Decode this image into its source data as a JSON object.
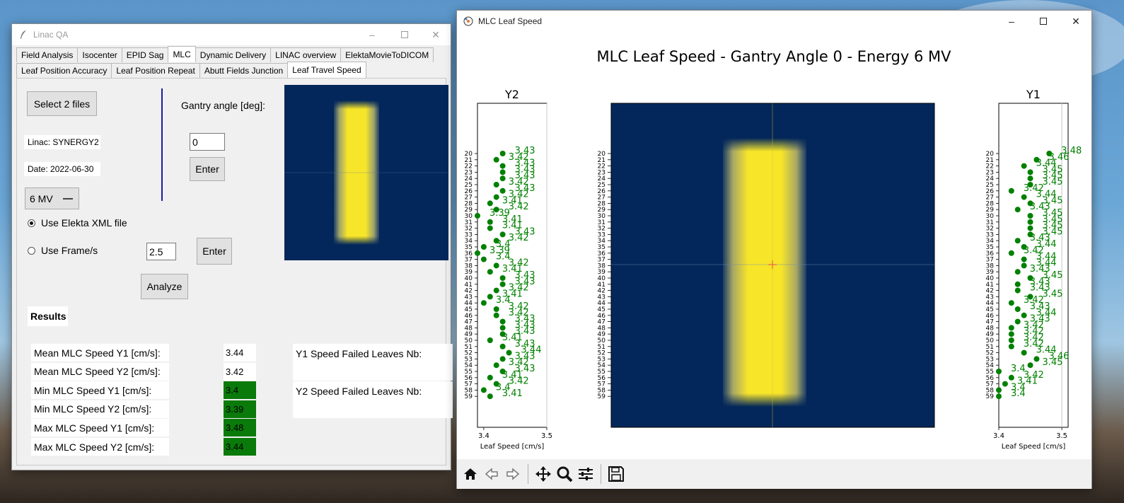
{
  "qa_window": {
    "title": "Linac QA",
    "tabs": [
      "Field Analysis",
      "Isocenter",
      "EPID Sag",
      "MLC",
      "Dynamic Delivery",
      "LINAC overview",
      "ElektaMovieToDICOM"
    ],
    "active_tab": "MLC",
    "subtabs": [
      "Leaf Position Accuracy",
      "Leaf Position Repeat",
      "Abutt Fields Junction",
      "Leaf Travel Speed"
    ],
    "active_subtab": "Leaf Travel Speed",
    "select_files_label": "Select 2 files",
    "linac_label": "Linac: SYNERGY2",
    "date_label": "Date: 2022-06-30",
    "energy_value": "6 MV",
    "gantry_label": "Gantry angle [deg]:",
    "gantry_value": "0",
    "enter_label": "Enter",
    "radio_xml_label": "Use Elekta XML file",
    "radio_frames_label": "Use Frame/s",
    "frames_value": "2.5",
    "analyze_label": "Analyze",
    "results_label": "Results",
    "results": [
      {
        "label": "Mean MLC Speed Y1 [cm/s]:",
        "value": "3.44",
        "status": "none"
      },
      {
        "label": "Mean MLC Speed Y2 [cm/s]:",
        "value": "3.42",
        "status": "none"
      },
      {
        "label": "Min MLC Speed Y1 [cm/s]:",
        "value": "3.4",
        "status": "pass"
      },
      {
        "label": "Min MLC Speed Y2 [cm/s]:",
        "value": "3.39",
        "status": "pass"
      },
      {
        "label": "Max MLC Speed Y1 [cm/s]:",
        "value": "3.48",
        "status": "pass"
      },
      {
        "label": "Max MLC Speed Y2 [cm/s]:",
        "value": "3.44",
        "status": "pass"
      }
    ],
    "y1_failed_label": "Y1 Speed Failed Leaves Nb:",
    "y2_failed_label": "Y2 Speed Failed Leaves Nb:"
  },
  "mlc_window": {
    "title": "MLC Leaf Speed",
    "toolbar": [
      "home-icon",
      "back-icon",
      "forward-icon",
      "pan-icon",
      "zoom-icon",
      "configure-icon",
      "save-icon"
    ]
  },
  "colors": {
    "pass_green": "#0a7a0a",
    "point_green": "#008000",
    "image_bg": "#032a60",
    "field_yellow": "#f7e52a",
    "crosshair": "#e05050"
  },
  "chart_data": [
    {
      "type": "image",
      "title": "MLC Leaf Speed - Gantry Angle 0 - Energy 6 MV",
      "description_field": {
        "x_range": [
          0,
          100
        ],
        "y_range": [
          0,
          100
        ],
        "field_x": [
          40,
          60
        ]
      }
    },
    {
      "type": "scatter",
      "title": "Y2",
      "xlabel": "Leaf Speed [cm/s]",
      "xticks": [
        "3.4",
        "3.5"
      ],
      "xlim": [
        3.39,
        3.5
      ],
      "leaves": [
        20,
        21,
        22,
        23,
        24,
        25,
        26,
        27,
        28,
        29,
        30,
        31,
        32,
        33,
        34,
        35,
        36,
        37,
        38,
        39,
        40,
        41,
        42,
        43,
        44,
        45,
        46,
        47,
        48,
        49,
        50,
        51,
        52,
        53,
        54,
        55,
        56,
        57,
        58,
        59
      ],
      "values": [
        3.43,
        3.42,
        3.43,
        3.43,
        3.43,
        3.42,
        3.43,
        3.42,
        3.41,
        3.42,
        3.39,
        3.41,
        3.41,
        3.43,
        3.42,
        3.4,
        3.39,
        3.4,
        3.42,
        3.41,
        3.43,
        3.43,
        3.42,
        3.41,
        3.4,
        3.42,
        3.42,
        3.43,
        3.43,
        3.43,
        3.41,
        3.43,
        3.44,
        3.43,
        3.42,
        3.43,
        3.41,
        3.42,
        3.4,
        3.41
      ]
    },
    {
      "type": "scatter",
      "title": "Y1",
      "xlabel": "Leaf Speed [cm/s]",
      "xticks": [
        "3.4",
        "3.5"
      ],
      "xlim": [
        3.4,
        3.51
      ],
      "leaves": [
        20,
        21,
        22,
        23,
        24,
        25,
        26,
        27,
        28,
        29,
        30,
        31,
        32,
        33,
        34,
        35,
        36,
        37,
        38,
        39,
        40,
        41,
        42,
        43,
        44,
        45,
        46,
        47,
        48,
        49,
        50,
        51,
        52,
        53,
        54,
        55,
        56,
        57,
        58,
        59
      ],
      "values": [
        3.48,
        3.46,
        3.44,
        3.45,
        3.45,
        3.45,
        3.42,
        3.44,
        3.45,
        3.43,
        3.45,
        3.45,
        3.45,
        3.45,
        3.43,
        3.44,
        3.42,
        3.44,
        3.44,
        3.43,
        3.45,
        3.43,
        3.43,
        3.45,
        3.42,
        3.43,
        3.44,
        3.43,
        3.42,
        3.42,
        3.42,
        3.42,
        3.44,
        3.46,
        3.45,
        3.4,
        3.42,
        3.41,
        3.4,
        3.4
      ]
    }
  ]
}
